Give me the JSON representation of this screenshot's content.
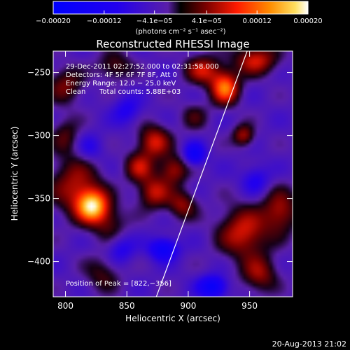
{
  "chart_data": {
    "type": "heatmap",
    "title": "Reconstructed RHESSI Image",
    "xlabel": "Heliocentric X (arcsec)",
    "ylabel": "Heliocentric Y (arcsec)",
    "xlim": [
      790,
      985
    ],
    "ylim": [
      -428,
      -233
    ],
    "x_ticks": [
      800,
      850,
      900,
      950
    ],
    "y_ticks": [
      -400,
      -350,
      -300,
      -250
    ],
    "x_tick_labels": [
      "800",
      "850",
      "900",
      "950"
    ],
    "y_tick_labels": [
      "−400",
      "−350",
      "−300",
      "−250"
    ],
    "colorbar": {
      "unit_label": "(photons cm⁻² s⁻¹ asec⁻²)",
      "range": [
        -0.0002,
        0.0002
      ],
      "ticks": [
        -0.0002,
        -0.00012,
        -4.1e-05,
        4.1e-05,
        0.00012,
        0.0002
      ],
      "tick_labels": [
        "−0.00020",
        "−0.00012",
        "−4.1e−05",
        "4.1e−05",
        "0.00012",
        "0.00020"
      ]
    },
    "annotations": {
      "time_range": "29-Dec-2011 02:27:52.000 to 02:31:58.000",
      "detectors": "Detectors: 4F 5F 6F 7F 8F, Att 0",
      "energy_range": "Energy Range: 12.0 − 25.0 keV",
      "algorithm": "Clean",
      "total_counts": "Total counts: 5.88E+03",
      "peak": "Position of Peak = [822,−356]"
    },
    "limb": [
      [
        874,
        -428
      ],
      [
        948,
        -233
      ]
    ],
    "sources": [
      {
        "x": 822,
        "y": -356,
        "amp": 0.0002,
        "sx": 9,
        "sy": 9
      },
      {
        "x": 808,
        "y": -340,
        "amp": 0.0001,
        "sx": 14,
        "sy": 16
      },
      {
        "x": 836,
        "y": -370,
        "amp": 6e-05,
        "sx": 10,
        "sy": 10
      },
      {
        "x": 872,
        "y": -305,
        "amp": 0.00012,
        "sx": 9,
        "sy": 9
      },
      {
        "x": 860,
        "y": -325,
        "amp": 0.0001,
        "sx": 8,
        "sy": 8
      },
      {
        "x": 888,
        "y": -327,
        "amp": 0.0001,
        "sx": 8,
        "sy": 8
      },
      {
        "x": 872,
        "y": -345,
        "amp": 0.00011,
        "sx": 9,
        "sy": 9
      },
      {
        "x": 895,
        "y": -355,
        "amp": 9e-05,
        "sx": 8,
        "sy": 8
      },
      {
        "x": 930,
        "y": -262,
        "amp": 0.00017,
        "sx": 8,
        "sy": 9
      },
      {
        "x": 912,
        "y": -248,
        "amp": 0.00011,
        "sx": 10,
        "sy": 8
      },
      {
        "x": 955,
        "y": -240,
        "amp": 0.00012,
        "sx": 12,
        "sy": 8
      },
      {
        "x": 945,
        "y": -300,
        "amp": 0.0001,
        "sx": 6,
        "sy": 6
      },
      {
        "x": 945,
        "y": -377,
        "amp": 0.00012,
        "sx": 14,
        "sy": 14
      },
      {
        "x": 975,
        "y": -360,
        "amp": 0.0001,
        "sx": 10,
        "sy": 12
      },
      {
        "x": 958,
        "y": -410,
        "amp": 9e-05,
        "sx": 10,
        "sy": 10
      },
      {
        "x": 905,
        "y": -285,
        "amp": 5e-05,
        "sx": 8,
        "sy": 8
      },
      {
        "x": 800,
        "y": -260,
        "amp": 8e-05,
        "sx": 10,
        "sy": 10
      },
      {
        "x": 840,
        "y": -245,
        "amp": 7e-05,
        "sx": 10,
        "sy": 8
      },
      {
        "x": 800,
        "y": -300,
        "amp": 6e-05,
        "sx": 8,
        "sy": 10
      },
      {
        "x": 830,
        "y": -410,
        "amp": 6e-05,
        "sx": 10,
        "sy": 10
      },
      {
        "x": 920,
        "y": -420,
        "amp": -0.00013,
        "sx": 8,
        "sy": 6
      },
      {
        "x": 880,
        "y": -390,
        "amp": -0.00012,
        "sx": 8,
        "sy": 6
      },
      {
        "x": 905,
        "y": -315,
        "amp": -0.00011,
        "sx": 6,
        "sy": 6
      },
      {
        "x": 850,
        "y": -280,
        "amp": -6e-05,
        "sx": 8,
        "sy": 8
      },
      {
        "x": 845,
        "y": -390,
        "amp": -6e-05,
        "sx": 8,
        "sy": 8
      },
      {
        "x": 955,
        "y": -335,
        "amp": -6e-05,
        "sx": 8,
        "sy": 8
      },
      {
        "x": 820,
        "y": -310,
        "amp": -5e-05,
        "sx": 8,
        "sy": 8
      }
    ]
  },
  "footer": {
    "timestamp": "20-Aug-2013 21:02"
  },
  "colors": {
    "background": "#000000",
    "text": "#ffffff",
    "limb": "#ffffff"
  }
}
